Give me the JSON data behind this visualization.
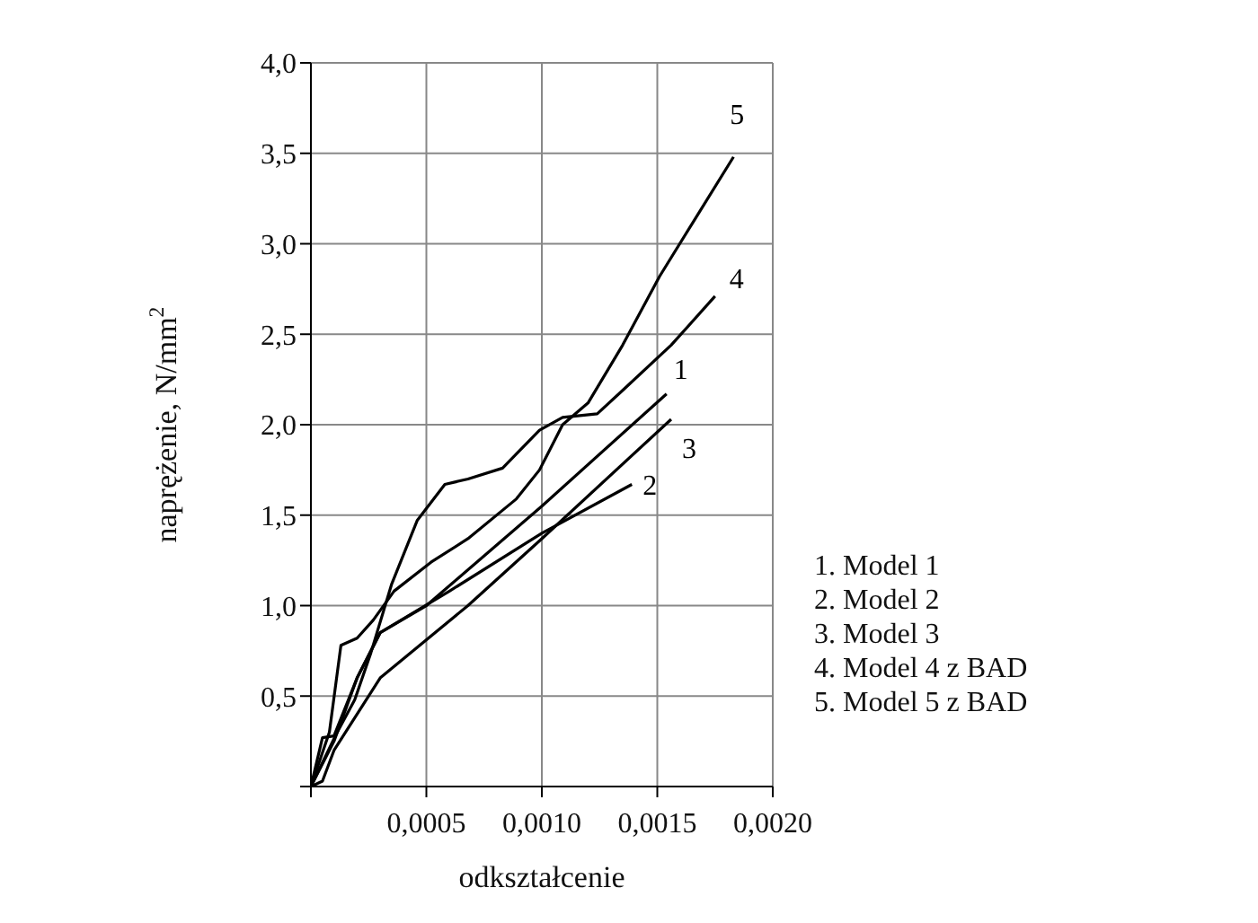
{
  "chart_data": {
    "type": "line",
    "xlabel": "odkształcenie",
    "ylabel": "naprężenie, N/mm$^{2}$",
    "xlim": [
      0,
      0.002
    ],
    "ylim": [
      0,
      4
    ],
    "xticks": [
      {
        "value": 0,
        "label": null
      },
      {
        "value": 0.0005,
        "label": "0,0005"
      },
      {
        "value": 0.001,
        "label": "0,0010"
      },
      {
        "value": 0.0015,
        "label": "0,0015"
      },
      {
        "value": 0.002,
        "label": "0,0020"
      }
    ],
    "yticks": [
      {
        "value": 0,
        "label": null
      },
      {
        "value": 0.5,
        "label": "0,5"
      },
      {
        "value": 1,
        "label": "1,0"
      },
      {
        "value": 1.5,
        "label": "1,5"
      },
      {
        "value": 2,
        "label": "2,0"
      },
      {
        "value": 2.5,
        "label": "2,5"
      },
      {
        "value": 3,
        "label": "3,0"
      },
      {
        "value": 3.5,
        "label": "3,5"
      },
      {
        "value": 4,
        "label": "4,0"
      }
    ],
    "grid": true,
    "marker": "none",
    "line_style": "solid",
    "series": [
      {
        "name": "1",
        "color": "#000000",
        "x": [
          0,
          0.0001,
          0.0002,
          0.0003,
          0.0005,
          0.001,
          0.00154
        ],
        "values": [
          0,
          0.25,
          0.6,
          0.85,
          1.0,
          1.55,
          2.17
        ]
      },
      {
        "name": "2",
        "color": "#000000",
        "x": [
          0,
          5e-05,
          0.0001,
          0.0002,
          0.0003,
          0.0006,
          0.001,
          0.00139
        ],
        "values": [
          0,
          0.27,
          0.28,
          0.6,
          0.85,
          1.08,
          1.4,
          1.67
        ]
      },
      {
        "name": "3",
        "color": "#000000",
        "x": [
          0,
          5e-05,
          0.0001,
          0.0003,
          0.00068,
          0.001,
          0.00156
        ],
        "values": [
          0,
          0.03,
          0.2,
          0.6,
          1.0,
          1.37,
          2.03
        ]
      },
      {
        "name": "4",
        "color": "#000000",
        "x": [
          0,
          0.00011,
          0.00019,
          0.00026,
          0.00035,
          0.00046,
          0.00058,
          0.00068,
          0.00083,
          0.00099,
          0.00109,
          0.00124,
          0.00135,
          0.00156,
          0.00175
        ],
        "values": [
          0,
          0.29,
          0.48,
          0.74,
          1.12,
          1.47,
          1.67,
          1.7,
          1.76,
          1.97,
          2.04,
          2.06,
          2.19,
          2.44,
          2.71
        ]
      },
      {
        "name": "5",
        "color": "#000000",
        "x": [
          0,
          8e-05,
          0.00013,
          0.0002,
          0.00027,
          0.00036,
          0.00052,
          0.00068,
          0.00089,
          0.00099,
          0.00109,
          0.0012,
          0.00135,
          0.00151,
          0.00166,
          0.00183
        ],
        "values": [
          0,
          0.3,
          0.78,
          0.82,
          0.92,
          1.08,
          1.24,
          1.37,
          1.59,
          1.75,
          2.0,
          2.12,
          2.44,
          2.82,
          3.13,
          3.48
        ]
      }
    ],
    "annotations": [
      "1. Model 1",
      "2. Model 2",
      "3. Model 3",
      "4. Model 4 z BAD",
      "5. Model 5 z BAD"
    ]
  }
}
